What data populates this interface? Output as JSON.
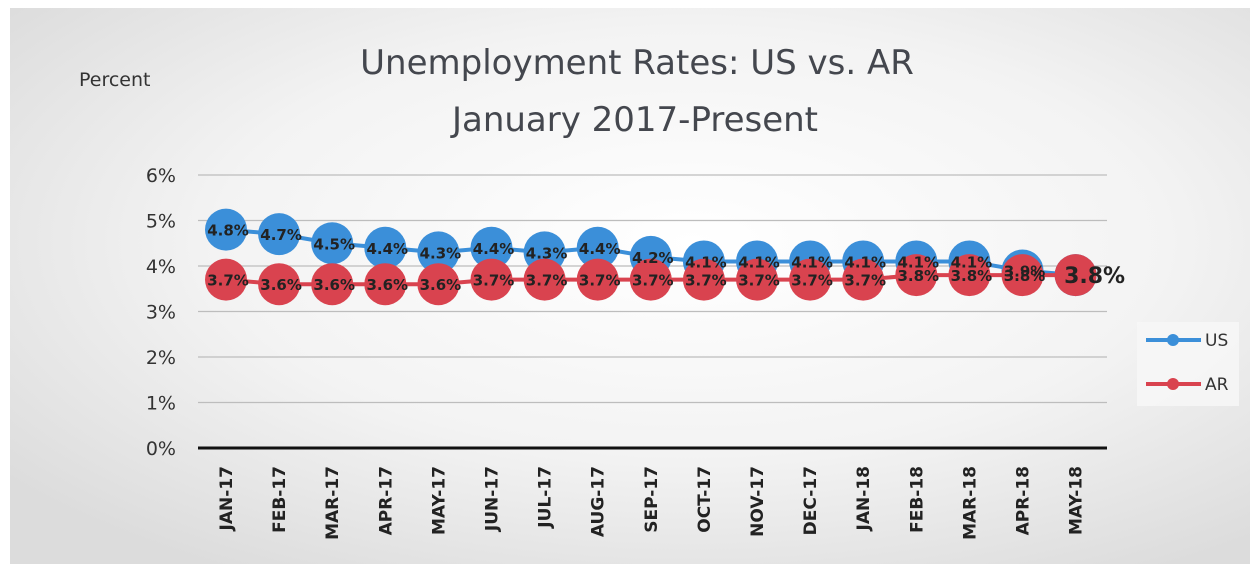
{
  "chart_data": {
    "type": "line",
    "title": "Unemployment Rates: US vs. AR",
    "subtitle": "January 2017-Present",
    "ylabel": "Percent",
    "xlabel": "",
    "ylim": [
      0,
      6
    ],
    "yticks": [
      "0%",
      "1%",
      "2%",
      "3%",
      "4%",
      "5%",
      "6%"
    ],
    "grid": true,
    "legend": "right",
    "categories": [
      "JAN-17",
      "FEB-17",
      "MAR-17",
      "APR-17",
      "MAY-17",
      "JUN-17",
      "JUL-17",
      "AUG-17",
      "SEP-17",
      "OCT-17",
      "NOV-17",
      "DEC-17",
      "JAN-18",
      "FEB-18",
      "MAR-18",
      "APR-18",
      "MAY-18"
    ],
    "series": [
      {
        "name": "US",
        "color": "#3b8fd9",
        "values": [
          4.8,
          4.7,
          4.5,
          4.4,
          4.3,
          4.4,
          4.3,
          4.4,
          4.2,
          4.1,
          4.1,
          4.1,
          4.1,
          4.1,
          4.1,
          3.9,
          3.8
        ],
        "labels": [
          "4.8%",
          "4.7%",
          "4.5%",
          "4.4%",
          "4.3%",
          "4.4%",
          "4.3%",
          "4.4%",
          "4.2%",
          "4.1%",
          "4.1%",
          "4.1%",
          "4.1%",
          "4.1%",
          "4.1%",
          "3.9%",
          ""
        ]
      },
      {
        "name": "AR",
        "color": "#d9434f",
        "values": [
          3.7,
          3.6,
          3.6,
          3.6,
          3.6,
          3.7,
          3.7,
          3.7,
          3.7,
          3.7,
          3.7,
          3.7,
          3.7,
          3.8,
          3.8,
          3.8,
          3.8
        ],
        "labels": [
          "3.7%",
          "3.6%",
          "3.6%",
          "3.6%",
          "3.6%",
          "3.7%",
          "3.7%",
          "3.7%",
          "3.7%",
          "3.7%",
          "3.7%",
          "3.7%",
          "3.7%",
          "3.8%",
          "3.8%",
          "3.8%",
          "3.8%"
        ]
      }
    ]
  }
}
